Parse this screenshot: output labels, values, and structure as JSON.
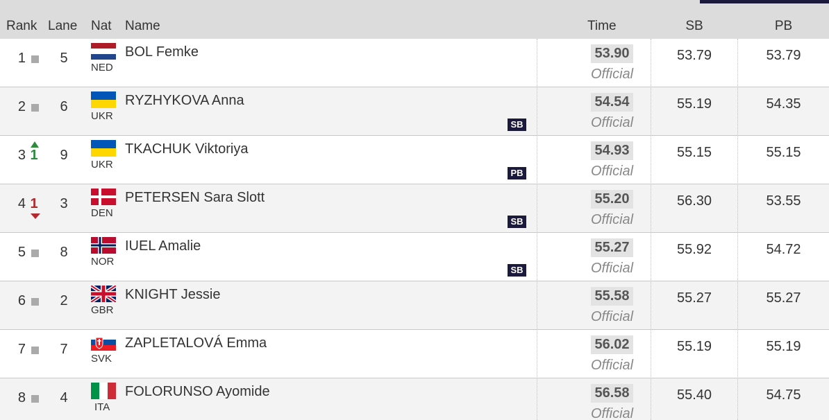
{
  "header": {
    "columns": [
      "Rank",
      "Lane",
      "Nat",
      "Name",
      "Time",
      "SB",
      "PB"
    ]
  },
  "rows": [
    {
      "rank": "1",
      "lane": "5",
      "nat": "NED",
      "name": "BOL Femke",
      "time": "53.90",
      "status": "Official",
      "sb": "53.79",
      "pb": "53.79"
    },
    {
      "rank": "2",
      "lane": "6",
      "nat": "UKR",
      "name": "RYZHYKOVA Anna",
      "record": "SB",
      "time": "54.54",
      "status": "Official",
      "sb": "55.19",
      "pb": "54.35"
    },
    {
      "rank": "3",
      "rank_change": "1",
      "lane": "9",
      "nat": "UKR",
      "name": "TKACHUK Viktoriya",
      "record": "PB",
      "time": "54.93",
      "status": "Official",
      "sb": "55.15",
      "pb": "55.15"
    },
    {
      "rank": "4",
      "rank_change": "1",
      "lane": "3",
      "nat": "DEN",
      "name": "PETERSEN Sara Slott",
      "record": "SB",
      "time": "55.20",
      "status": "Official",
      "sb": "56.30",
      "pb": "53.55"
    },
    {
      "rank": "5",
      "lane": "8",
      "nat": "NOR",
      "name": "IUEL Amalie",
      "record": "SB",
      "time": "55.27",
      "status": "Official",
      "sb": "55.92",
      "pb": "54.72"
    },
    {
      "rank": "6",
      "lane": "2",
      "nat": "GBR",
      "name": "KNIGHT Jessie",
      "time": "55.58",
      "status": "Official",
      "sb": "55.27",
      "pb": "55.27"
    },
    {
      "rank": "7",
      "lane": "7",
      "nat": "SVK",
      "name": "ZAPLETALOVÁ Emma",
      "time": "56.02",
      "status": "Official",
      "sb": "55.19",
      "pb": "55.19"
    },
    {
      "rank": "8",
      "lane": "4",
      "nat": "ITA",
      "name": "FOLORUNSO Ayomide",
      "time": "56.58",
      "status": "Official",
      "sb": "55.40",
      "pb": "54.75"
    }
  ]
}
